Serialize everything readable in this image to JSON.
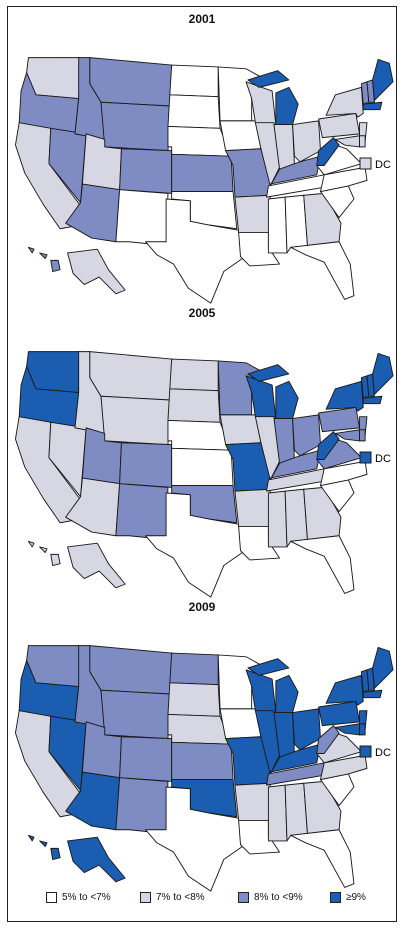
{
  "colors": {
    "c1": "#ffffff",
    "c2": "#d6d7e3",
    "c3": "#7f8cc4",
    "c4": "#1b5db0",
    "outline": "#1a1a1a"
  },
  "dc_label": "DC",
  "legend": [
    {
      "label": "5% to <7%",
      "color_key": "c1"
    },
    {
      "label": "7% to <8%",
      "color_key": "c2"
    },
    {
      "label": "8% to <9%",
      "color_key": "c3"
    },
    {
      "label": "≥9%",
      "color_key": "c4"
    }
  ],
  "panels": [
    {
      "year": "2001",
      "dc": "c2",
      "states": {
        "WA": "c2",
        "OR": "c3",
        "CA": "c2",
        "NV": "c3",
        "ID": "c3",
        "MT": "c3",
        "WY": "c3",
        "UT": "c2",
        "AZ": "c3",
        "CO": "c3",
        "NM": "c1",
        "ND": "c1",
        "SD": "c1",
        "NE": "c1",
        "KS": "c3",
        "OK": "c1",
        "TX": "c1",
        "MN": "c1",
        "IA": "c1",
        "MO": "c3",
        "AR": "c2",
        "LA": "c1",
        "WI": "c2",
        "IL": "c2",
        "MI": "c4",
        "IN": "c2",
        "OH": "c2",
        "KY": "c3",
        "TN": "c1",
        "MS": "c1",
        "AL": "c1",
        "GA": "c2",
        "FL": "c1",
        "SC": "c1",
        "NC": "c1",
        "VA": "c1",
        "WV": "c4",
        "PA": "c2",
        "NY": "c2",
        "VT": "c3",
        "NH": "c3",
        "ME": "c4",
        "MA": "c4",
        "NJ": "c2",
        "MD": "c2",
        "DE": "c2",
        "AK": "c2",
        "HI": "c3"
      }
    },
    {
      "year": "2005",
      "dc": "c4",
      "states": {
        "WA": "c4",
        "OR": "c4",
        "CA": "c2",
        "NV": "c2",
        "ID": "c2",
        "MT": "c2",
        "WY": "c2",
        "UT": "c3",
        "AZ": "c2",
        "CO": "c3",
        "NM": "c3",
        "ND": "c2",
        "SD": "c2",
        "NE": "c1",
        "KS": "c1",
        "OK": "c3",
        "TX": "c1",
        "MN": "c3",
        "IA": "c2",
        "MO": "c4",
        "AR": "c2",
        "LA": "c1",
        "WI": "c4",
        "IL": "c2",
        "MI": "c4",
        "IN": "c3",
        "OH": "c3",
        "KY": "c3",
        "TN": "c2",
        "MS": "c2",
        "AL": "c2",
        "GA": "c2",
        "FL": "c1",
        "SC": "c1",
        "NC": "c1",
        "VA": "c3",
        "WV": "c4",
        "PA": "c3",
        "NY": "c4",
        "VT": "c4",
        "NH": "c4",
        "ME": "c4",
        "MA": "c4",
        "NJ": "c3",
        "MD": "c3",
        "DE": "c3",
        "AK": "c2",
        "HI": "c2"
      }
    },
    {
      "year": "2009",
      "dc": "c4",
      "states": {
        "WA": "c3",
        "OR": "c4",
        "CA": "c2",
        "NV": "c4",
        "ID": "c3",
        "MT": "c3",
        "WY": "c3",
        "UT": "c3",
        "AZ": "c4",
        "CO": "c3",
        "NM": "c3",
        "ND": "c3",
        "SD": "c2",
        "NE": "c2",
        "KS": "c3",
        "OK": "c4",
        "TX": "c1",
        "MN": "c1",
        "IA": "c1",
        "MO": "c4",
        "AR": "c2",
        "LA": "c1",
        "WI": "c4",
        "IL": "c4",
        "MI": "c4",
        "IN": "c4",
        "OH": "c4",
        "KY": "c4",
        "TN": "c3",
        "MS": "c2",
        "AL": "c2",
        "GA": "c2",
        "FL": "c1",
        "SC": "c1",
        "NC": "c2",
        "VA": "c2",
        "WV": "c3",
        "PA": "c4",
        "NY": "c4",
        "VT": "c4",
        "NH": "c4",
        "ME": "c4",
        "MA": "c4",
        "NJ": "c4",
        "MD": "c4",
        "DE": "c4",
        "AK": "c4",
        "HI": "c4"
      }
    }
  ]
}
